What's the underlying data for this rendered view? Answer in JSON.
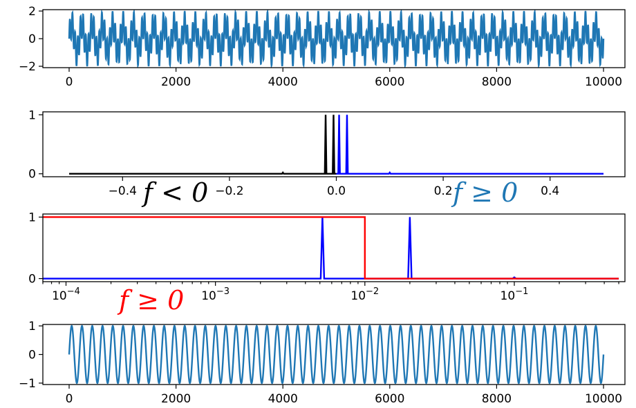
{
  "chart_data": [
    {
      "type": "line",
      "x_ticks": [
        0,
        2000,
        4000,
        6000,
        8000,
        10000
      ],
      "y_ticks": [
        -2,
        0,
        2
      ],
      "xlim": [
        0,
        10000
      ],
      "ylim": [
        -2.1,
        2.1
      ],
      "grid": false,
      "series": [
        {
          "color": "#1f77b4",
          "description": "sum of two sinusoids sampled at n = 0..10000",
          "components": [
            {
              "frequency": 0.0052,
              "amplitude": 1.0
            },
            {
              "frequency": 0.02,
              "amplitude": 1.0
            }
          ]
        }
      ]
    },
    {
      "type": "line",
      "x_ticks": [
        -0.4,
        -0.2,
        0.0,
        0.2,
        0.4
      ],
      "x_tick_labels": [
        "−0.4",
        "−0.2",
        "0.0",
        "0.2",
        "0.4"
      ],
      "y_ticks": [
        0,
        1
      ],
      "xlim": [
        -0.5,
        0.5
      ],
      "ylim": [
        -0.05,
        1.05
      ],
      "annotations": [
        {
          "text": "f < 0",
          "color": "#000000",
          "x": -0.3,
          "y": -0.45
        },
        {
          "text": "f ≥ 0",
          "color": "#1f77b4",
          "x": 0.3,
          "y": -0.45
        }
      ],
      "series": [
        {
          "color": "#000000",
          "x": [
            -0.5,
            -0.1,
            -0.02,
            -0.0052,
            0.0
          ],
          "y": [
            0.0,
            0.02,
            1.0,
            1.0,
            0.0
          ]
        },
        {
          "color": "#0000ff",
          "x": [
            0.0,
            0.0052,
            0.02,
            0.1,
            0.5
          ],
          "y": [
            0.0,
            1.0,
            1.0,
            0.02,
            0.0
          ]
        }
      ]
    },
    {
      "type": "line",
      "x_scale": "log",
      "x_ticks": [
        0.0001,
        0.001,
        0.01,
        0.1
      ],
      "x_tick_labels": [
        {
          "base": "10",
          "exp": "−4"
        },
        {
          "base": "10",
          "exp": "−3"
        },
        {
          "base": "10",
          "exp": "−2"
        },
        {
          "base": "10",
          "exp": "−1"
        }
      ],
      "y_ticks": [
        0,
        1
      ],
      "xlim": [
        7e-05,
        0.55
      ],
      "ylim": [
        -0.05,
        1.05
      ],
      "annotations": [
        {
          "text": "f ≥ 0",
          "color": "#ff0000",
          "x": 0.0003,
          "y": -0.45
        }
      ],
      "series": [
        {
          "color": "#0000ff",
          "x": [
            7e-05,
            0.0052,
            0.02,
            0.1,
            0.5
          ],
          "y": [
            0.0,
            1.0,
            1.0,
            0.02,
            0.0
          ]
        },
        {
          "color": "#ff0000",
          "x": [
            7e-05,
            0.01,
            0.01,
            0.5
          ],
          "y": [
            1.0,
            1.0,
            0.0,
            0.0
          ]
        }
      ]
    },
    {
      "type": "line",
      "x_ticks": [
        0,
        2000,
        4000,
        6000,
        8000,
        10000
      ],
      "y_ticks": [
        -1,
        0,
        1
      ],
      "y_tick_labels": [
        "−1",
        "0",
        "1"
      ],
      "xlim": [
        0,
        10000
      ],
      "ylim": [
        -1.05,
        1.05
      ],
      "series": [
        {
          "color": "#1f77b4",
          "description": "single sinusoid sampled at n = 0..10000",
          "components": [
            {
              "frequency": 0.0052,
              "amplitude": 1.0
            }
          ]
        }
      ]
    }
  ],
  "tick_text": {
    "p1_x": [
      "0",
      "2000",
      "4000",
      "6000",
      "8000",
      "10000"
    ],
    "p1_y": [
      "−2",
      "0",
      "2"
    ],
    "p2_y": [
      "0",
      "1"
    ],
    "p3_y": [
      "0",
      "1"
    ],
    "p4_x": [
      "0",
      "2000",
      "4000",
      "6000",
      "8000",
      "10000"
    ]
  }
}
